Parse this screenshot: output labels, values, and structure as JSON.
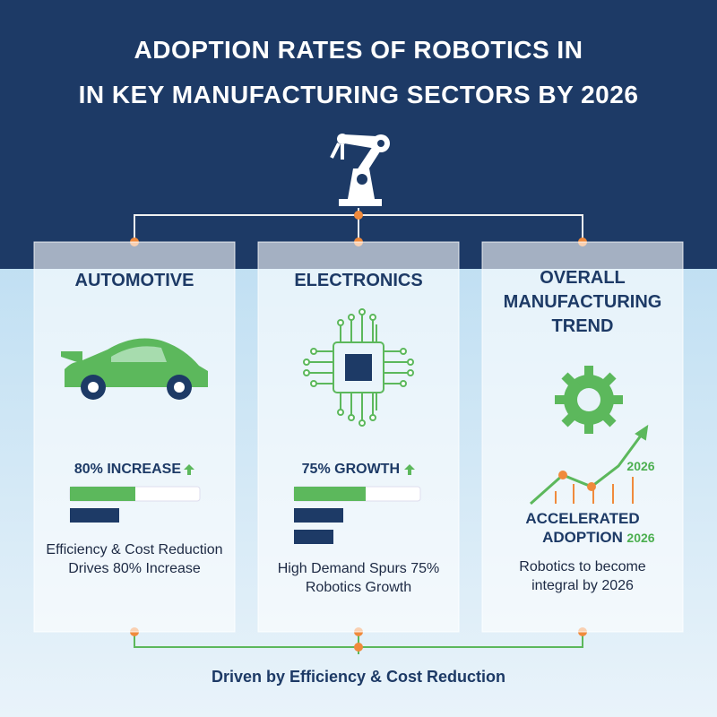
{
  "header": {
    "title_lines": [
      "ADOPTION RATES OF ROBOTICS IN",
      "IN KEY MANUFACTURING SECTORS BY 2026"
    ]
  },
  "panels": [
    {
      "title": "AUTOMOTIVE",
      "stat": "80% INCREASE",
      "description": "Efficiency & Cost Reduction Drives 80% Increase"
    },
    {
      "title": "ELECTRONICS",
      "stat": "75% GROWTH",
      "description": "High Demand Spurs 75% Robotics Growth"
    },
    {
      "title": "OVERALL MANUFACTURING TREND",
      "chart_label": "2026",
      "stat": "ACCELERATED ADOPTION",
      "stat_year": "2026",
      "description": "Robotics to become integral by 2026"
    }
  ],
  "footer": {
    "text": "Driven by Efficiency & Cost Reduction"
  }
}
